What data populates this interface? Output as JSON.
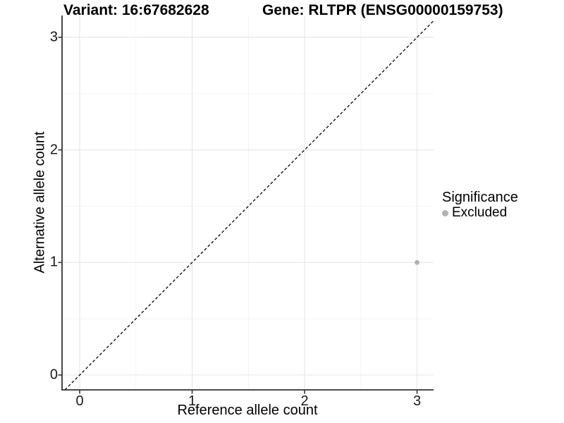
{
  "chart_data": {
    "type": "scatter",
    "title_left": "Variant: 16:67682628",
    "title_right": "Gene: RLTPR (ENSG00000159753)",
    "xlabel": "Reference allele count",
    "ylabel": "Alternative allele count",
    "xlim": [
      -0.157,
      3.147
    ],
    "ylim": [
      -0.132,
      3.194
    ],
    "x_ticks": [
      0,
      1,
      2,
      3
    ],
    "y_ticks": [
      0,
      1,
      2,
      3
    ],
    "grid": true,
    "series": [
      {
        "name": "Excluded",
        "color": "#b2b2b2",
        "points": [
          {
            "x": 3,
            "y": 1
          }
        ]
      }
    ],
    "reference_line": {
      "type": "diagonal",
      "equation": "y = x",
      "style": "dashed",
      "color": "#000000"
    },
    "legend": {
      "title": "Significance",
      "position": "right",
      "items": [
        {
          "label": "Excluded",
          "color": "#b2b2b2"
        }
      ]
    },
    "colors": {
      "grid_major": "#e8e8e8",
      "grid_minor": "#f4f4f4",
      "axis_line": "#333333",
      "panel_background": "#ffffff"
    }
  }
}
